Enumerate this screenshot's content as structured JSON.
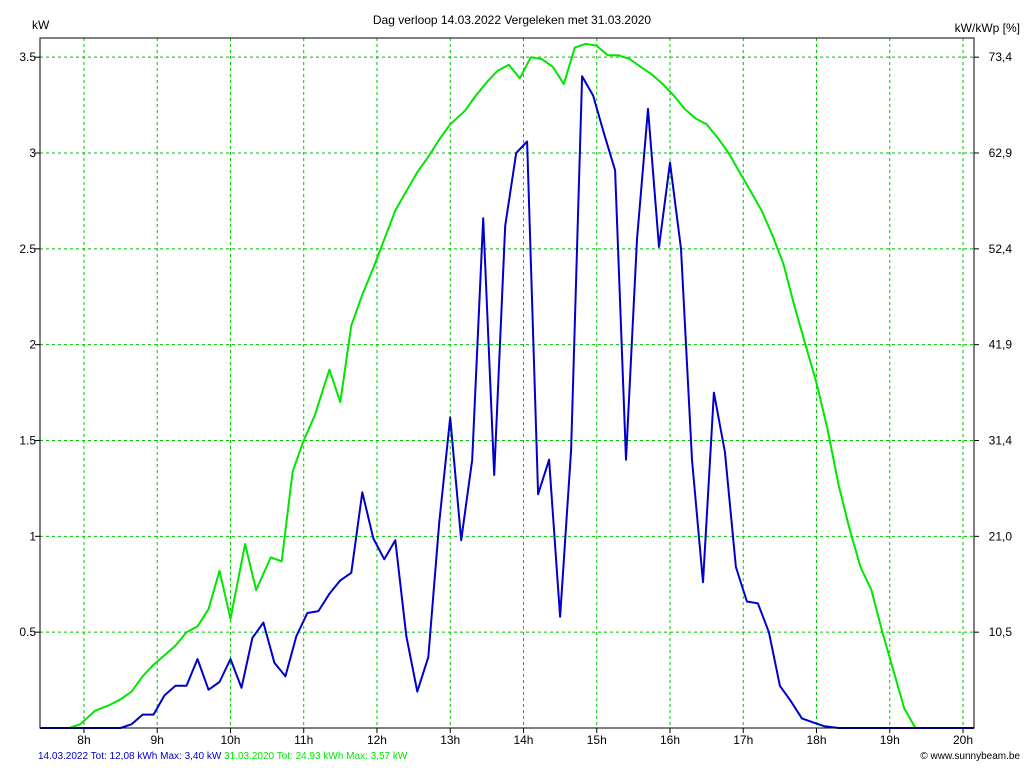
{
  "chart_data": {
    "type": "line",
    "title": "Dag  verloop 14.03.2022   Vergeleken met 31.03.2020",
    "ylabel_left": "kW",
    "ylabel_right": "kW/kWp [%]",
    "xlim": [
      7.4,
      20.15
    ],
    "ylim": [
      0,
      3.6
    ],
    "x_ticks": [
      {
        "x": 8,
        "label": "8h"
      },
      {
        "x": 9,
        "label": "9h"
      },
      {
        "x": 10,
        "label": "10h"
      },
      {
        "x": 11,
        "label": "11h"
      },
      {
        "x": 12,
        "label": "12h"
      },
      {
        "x": 13,
        "label": "13h"
      },
      {
        "x": 14,
        "label": "14h"
      },
      {
        "x": 15,
        "label": "15h"
      },
      {
        "x": 16,
        "label": "16h"
      },
      {
        "x": 17,
        "label": "17h"
      },
      {
        "x": 18,
        "label": "18h"
      },
      {
        "x": 19,
        "label": "19h"
      },
      {
        "x": 20,
        "label": "20h"
      }
    ],
    "y_ticks_left": [
      {
        "y": 0.5,
        "label": "0.5"
      },
      {
        "y": 1,
        "label": "1"
      },
      {
        "y": 1.5,
        "label": "1.5"
      },
      {
        "y": 2,
        "label": "2"
      },
      {
        "y": 2.5,
        "label": "2.5"
      },
      {
        "y": 3,
        "label": "3"
      },
      {
        "y": 3.5,
        "label": "3.5"
      }
    ],
    "y_ticks_right": [
      {
        "y": 0.5,
        "label": "10,5"
      },
      {
        "y": 1,
        "label": "21,0"
      },
      {
        "y": 1.5,
        "label": "31,4"
      },
      {
        "y": 2,
        "label": "41,9"
      },
      {
        "y": 2.5,
        "label": "52,4"
      },
      {
        "y": 3,
        "label": "62,9"
      },
      {
        "y": 3.5,
        "label": "73,4"
      }
    ],
    "grid": true,
    "series": [
      {
        "name": "31.03.2020",
        "color": "#00e600",
        "points": [
          [
            7.4,
            0
          ],
          [
            7.8,
            0
          ],
          [
            7.95,
            0.02
          ],
          [
            8.15,
            0.09
          ],
          [
            8.35,
            0.12
          ],
          [
            8.5,
            0.15
          ],
          [
            8.65,
            0.19
          ],
          [
            8.8,
            0.27
          ],
          [
            8.95,
            0.33
          ],
          [
            9.1,
            0.38
          ],
          [
            9.25,
            0.43
          ],
          [
            9.4,
            0.5
          ],
          [
            9.55,
            0.53
          ],
          [
            9.7,
            0.62
          ],
          [
            9.85,
            0.82
          ],
          [
            10.0,
            0.57
          ],
          [
            10.2,
            0.96
          ],
          [
            10.35,
            0.72
          ],
          [
            10.55,
            0.89
          ],
          [
            10.7,
            0.87
          ],
          [
            10.85,
            1.34
          ],
          [
            11.0,
            1.5
          ],
          [
            11.15,
            1.63
          ],
          [
            11.35,
            1.87
          ],
          [
            11.5,
            1.7
          ],
          [
            11.65,
            2.1
          ],
          [
            11.8,
            2.26
          ],
          [
            11.95,
            2.4
          ],
          [
            12.1,
            2.55
          ],
          [
            12.25,
            2.7
          ],
          [
            12.4,
            2.8
          ],
          [
            12.55,
            2.9
          ],
          [
            12.7,
            2.98
          ],
          [
            12.85,
            3.07
          ],
          [
            13.0,
            3.15
          ],
          [
            13.2,
            3.22
          ],
          [
            13.35,
            3.3
          ],
          [
            13.5,
            3.37
          ],
          [
            13.65,
            3.43
          ],
          [
            13.8,
            3.46
          ],
          [
            13.95,
            3.39
          ],
          [
            14.1,
            3.5
          ],
          [
            14.25,
            3.49
          ],
          [
            14.4,
            3.45
          ],
          [
            14.55,
            3.36
          ],
          [
            14.7,
            3.55
          ],
          [
            14.85,
            3.57
          ],
          [
            15.0,
            3.56
          ],
          [
            15.15,
            3.51
          ],
          [
            15.3,
            3.51
          ],
          [
            15.45,
            3.49
          ],
          [
            15.6,
            3.45
          ],
          [
            15.75,
            3.41
          ],
          [
            15.9,
            3.36
          ],
          [
            16.05,
            3.3
          ],
          [
            16.2,
            3.23
          ],
          [
            16.35,
            3.18
          ],
          [
            16.5,
            3.15
          ],
          [
            16.65,
            3.08
          ],
          [
            16.8,
            3.0
          ],
          [
            16.95,
            2.9
          ],
          [
            17.1,
            2.8
          ],
          [
            17.25,
            2.7
          ],
          [
            17.4,
            2.57
          ],
          [
            17.55,
            2.42
          ],
          [
            17.7,
            2.2
          ],
          [
            17.85,
            2.0
          ],
          [
            18.0,
            1.8
          ],
          [
            18.15,
            1.56
          ],
          [
            18.3,
            1.27
          ],
          [
            18.45,
            1.04
          ],
          [
            18.6,
            0.84
          ],
          [
            18.75,
            0.72
          ],
          [
            18.9,
            0.5
          ],
          [
            19.05,
            0.3
          ],
          [
            19.2,
            0.1
          ],
          [
            19.35,
            0
          ],
          [
            20.15,
            0
          ]
        ]
      },
      {
        "name": "14.03.2022",
        "color": "#0000cc",
        "points": [
          [
            7.4,
            0
          ],
          [
            8.2,
            0
          ],
          [
            8.5,
            0
          ],
          [
            8.65,
            0.02
          ],
          [
            8.8,
            0.07
          ],
          [
            8.95,
            0.07
          ],
          [
            9.1,
            0.17
          ],
          [
            9.25,
            0.22
          ],
          [
            9.4,
            0.22
          ],
          [
            9.55,
            0.36
          ],
          [
            9.7,
            0.2
          ],
          [
            9.85,
            0.24
          ],
          [
            10.0,
            0.36
          ],
          [
            10.15,
            0.21
          ],
          [
            10.3,
            0.47
          ],
          [
            10.45,
            0.55
          ],
          [
            10.6,
            0.34
          ],
          [
            10.75,
            0.27
          ],
          [
            10.9,
            0.48
          ],
          [
            11.05,
            0.6
          ],
          [
            11.2,
            0.61
          ],
          [
            11.35,
            0.7
          ],
          [
            11.5,
            0.77
          ],
          [
            11.65,
            0.81
          ],
          [
            11.8,
            1.23
          ],
          [
            11.95,
            0.99
          ],
          [
            12.1,
            0.88
          ],
          [
            12.25,
            0.98
          ],
          [
            12.4,
            0.48
          ],
          [
            12.55,
            0.19
          ],
          [
            12.7,
            0.37
          ],
          [
            12.85,
            1.07
          ],
          [
            13.0,
            1.62
          ],
          [
            13.15,
            0.98
          ],
          [
            13.3,
            1.4
          ],
          [
            13.45,
            2.66
          ],
          [
            13.6,
            1.32
          ],
          [
            13.75,
            2.62
          ],
          [
            13.9,
            3.0
          ],
          [
            14.05,
            3.06
          ],
          [
            14.2,
            1.22
          ],
          [
            14.35,
            1.4
          ],
          [
            14.5,
            0.58
          ],
          [
            14.65,
            1.45
          ],
          [
            14.8,
            3.4
          ],
          [
            14.95,
            3.3
          ],
          [
            15.1,
            3.1
          ],
          [
            15.25,
            2.91
          ],
          [
            15.4,
            1.4
          ],
          [
            15.55,
            2.55
          ],
          [
            15.7,
            3.23
          ],
          [
            15.85,
            2.51
          ],
          [
            16.0,
            2.95
          ],
          [
            16.15,
            2.5
          ],
          [
            16.3,
            1.4
          ],
          [
            16.45,
            0.76
          ],
          [
            16.6,
            1.75
          ],
          [
            16.75,
            1.44
          ],
          [
            16.9,
            0.84
          ],
          [
            17.05,
            0.66
          ],
          [
            17.2,
            0.65
          ],
          [
            17.35,
            0.5
          ],
          [
            17.5,
            0.22
          ],
          [
            17.65,
            0.14
          ],
          [
            17.8,
            0.05
          ],
          [
            17.95,
            0.03
          ],
          [
            18.1,
            0.01
          ],
          [
            18.3,
            0
          ],
          [
            20.15,
            0
          ]
        ]
      }
    ]
  },
  "footer": {
    "series1_text": "14.03.2022 Tot: 12,08 kWh Max: 3,40 kW",
    "series1_color": "#0000cc",
    "series2_text": " 31.03.2020 Tot: 24,93 kWh Max: 3,57 kW",
    "series2_color": "#00e600",
    "copyright": "© www.sunnybeam.be"
  }
}
